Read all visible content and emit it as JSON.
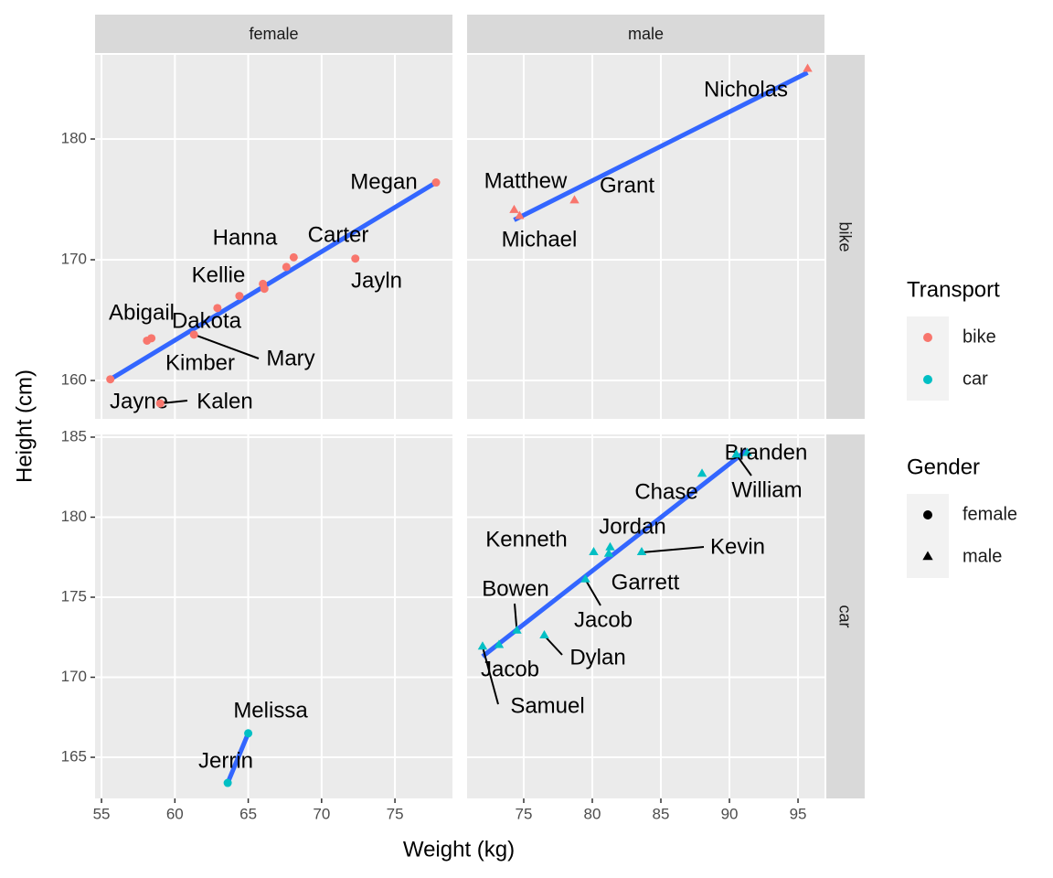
{
  "chart_data": {
    "type": "scatter",
    "x_label": "Weight (kg)",
    "y_label": "Height (cm)",
    "col_facets": [
      "female",
      "male"
    ],
    "row_facets": [
      "bike",
      "car"
    ],
    "xlims": [
      [
        54.56,
        78.92
      ],
      [
        70.87,
        96.93
      ]
    ],
    "xticks": [
      [
        55,
        60,
        65,
        70,
        75
      ],
      [
        75,
        80,
        85,
        90,
        95
      ]
    ],
    "ylims": [
      [
        156.82,
        186.97
      ],
      [
        162.43,
        185.17
      ]
    ],
    "yticks": [
      [
        160,
        170,
        180
      ],
      [
        165,
        170,
        175,
        180,
        185
      ]
    ],
    "fit_color": "#3366FF",
    "grid": true,
    "panels": [
      {
        "x": [
          77.8,
          72.3,
          68.1,
          67.6,
          66.0,
          66.1,
          64.4,
          62.9,
          61.3,
          58.4,
          58.1,
          55.6,
          59.0
        ],
        "y": [
          176.4,
          170.1,
          170.2,
          169.4,
          168.0,
          167.6,
          167.0,
          166.0,
          163.8,
          163.5,
          163.3,
          160.1,
          158.1
        ],
        "labels": [
          "Megan",
          "Jayln",
          "Carter",
          "Hanna",
          "Kellie",
          null,
          null,
          "Dakota",
          "Mary",
          "Abigail",
          "Kimber",
          "Jayne",
          "Kalen"
        ],
        "fit": {
          "x": [
            55.6,
            77.8
          ],
          "y": [
            160.1,
            176.4
          ]
        }
      },
      {
        "x": [
          95.7,
          74.3,
          74.7,
          78.7
        ],
        "y": [
          185.8,
          174.1,
          173.6,
          174.9
        ],
        "labels": [
          "Nicholas",
          "Matthew",
          "Michael",
          "Grant"
        ],
        "fit": {
          "x": [
            74.3,
            95.7
          ],
          "y": [
            173.3,
            185.5
          ]
        }
      },
      {
        "x": [
          65.0,
          63.6
        ],
        "y": [
          166.5,
          163.4
        ],
        "labels": [
          "Melissa",
          "Jerrin"
        ],
        "fit": {
          "x": [
            63.6,
            65.0
          ],
          "y": [
            163.4,
            166.5
          ]
        }
      },
      {
        "x": [
          91.3,
          90.5,
          88.0,
          81.3,
          80.1,
          81.2,
          83.6,
          79.5,
          74.5,
          76.5,
          72.0,
          73.2
        ],
        "y": [
          184.0,
          183.9,
          182.7,
          178.1,
          177.8,
          177.7,
          177.8,
          176.1,
          172.9,
          172.6,
          171.9,
          172.0
        ],
        "labels": [
          "Branden",
          "William",
          "Chase",
          "Jordan",
          "Kenneth",
          "Garrett",
          "Kevin",
          "Jacob",
          "Bowen",
          "Dylan",
          "Samuel",
          "Jacob"
        ],
        "fit": {
          "x": [
            72.0,
            91.3
          ],
          "y": [
            171.3,
            184.2
          ]
        }
      }
    ],
    "legends": [
      {
        "title": "Transport",
        "items": [
          "bike",
          "car"
        ],
        "colors": [
          "#F8766D",
          "#00BFC4"
        ]
      },
      {
        "title": "Gender",
        "items": [
          "female",
          "male"
        ],
        "shapes": [
          "circle",
          "triangle"
        ]
      }
    ]
  }
}
